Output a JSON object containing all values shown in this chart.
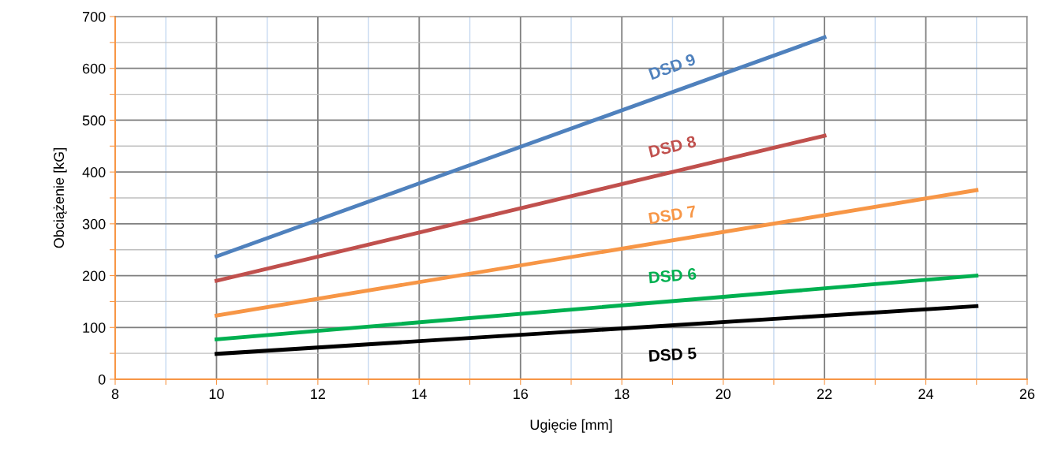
{
  "chart_data": {
    "type": "line",
    "xlabel": "Ugięcie [mm]",
    "ylabel": "Obciążenie [kG]",
    "xlim": [
      8,
      26
    ],
    "ylim": [
      0,
      700
    ],
    "xticks": [
      8,
      {
        "value": 9,
        "label": null
      },
      10,
      {
        "value": 11,
        "label": null
      },
      12,
      {
        "value": 13,
        "label": null
      },
      14,
      {
        "value": 15,
        "label": null
      },
      16,
      {
        "value": 17,
        "label": null
      },
      18,
      {
        "value": 19,
        "label": null
      },
      20,
      {
        "value": 21,
        "label": null
      },
      22,
      {
        "value": 23,
        "label": null
      },
      24,
      {
        "value": 25,
        "label": null
      },
      26
    ],
    "yticks": [
      0,
      {
        "value": 50,
        "label": null
      },
      100,
      {
        "value": 150,
        "label": null
      },
      200,
      {
        "value": 250,
        "label": null
      },
      300,
      {
        "value": 350,
        "label": null
      },
      400,
      {
        "value": 450,
        "label": null
      },
      500,
      {
        "value": 550,
        "label": null
      },
      600,
      {
        "value": 650,
        "label": null
      },
      700
    ],
    "grid": true,
    "marker": "none",
    "line_style": "solid",
    "series": [
      {
        "name": "DSD 9",
        "color": "#4f81bd",
        "x": [
          10,
          22
        ],
        "values": [
          237,
          660
        ]
      },
      {
        "name": "DSD 8",
        "color": "#c0504d",
        "x": [
          10,
          22
        ],
        "values": [
          190,
          470
        ]
      },
      {
        "name": "DSD 7",
        "color": "#f79646",
        "x": [
          10,
          25
        ],
        "values": [
          123,
          365
        ]
      },
      {
        "name": "DSD 6",
        "color": "#00b050",
        "x": [
          10,
          25
        ],
        "values": [
          77,
          200
        ]
      },
      {
        "name": "DSD 5",
        "color": "#000000",
        "x": [
          10,
          25
        ],
        "values": [
          49,
          141
        ]
      }
    ]
  }
}
